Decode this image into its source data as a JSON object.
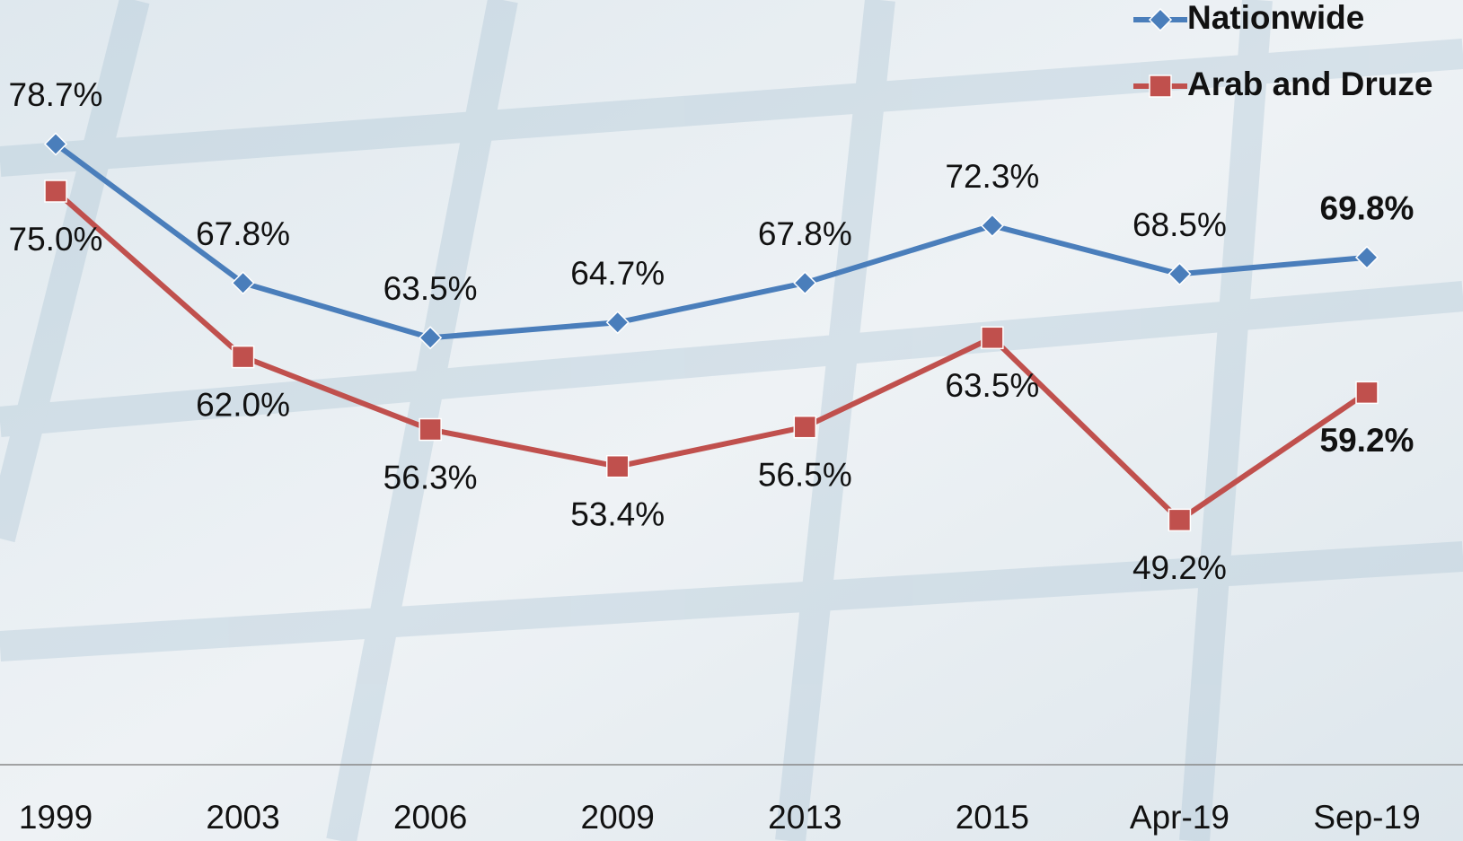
{
  "chart_data": {
    "type": "line",
    "categories": [
      "1999",
      "2003",
      "2006",
      "2009",
      "2013",
      "2015",
      "Apr-19",
      "Sep-19"
    ],
    "series": [
      {
        "name": "Nationwide",
        "color": "#4a7ebb",
        "marker": "diamond",
        "values": [
          78.7,
          67.8,
          63.5,
          64.7,
          67.8,
          72.3,
          68.5,
          69.8
        ],
        "value_labels": [
          "78.7%",
          "67.8%",
          "63.5%",
          "64.7%",
          "67.8%",
          "72.3%",
          "68.5%",
          "69.8%"
        ]
      },
      {
        "name": "Arab and Druze",
        "color": "#c0504d",
        "marker": "square",
        "values": [
          75.0,
          62.0,
          56.3,
          53.4,
          56.5,
          63.5,
          49.2,
          59.2
        ],
        "value_labels": [
          "75.0%",
          "62.0%",
          "56.3%",
          "53.4%",
          "56.5%",
          "63.5%",
          "49.2%",
          "59.2%"
        ]
      }
    ],
    "ylim": [
      30,
      90
    ],
    "legend": "top-right"
  }
}
